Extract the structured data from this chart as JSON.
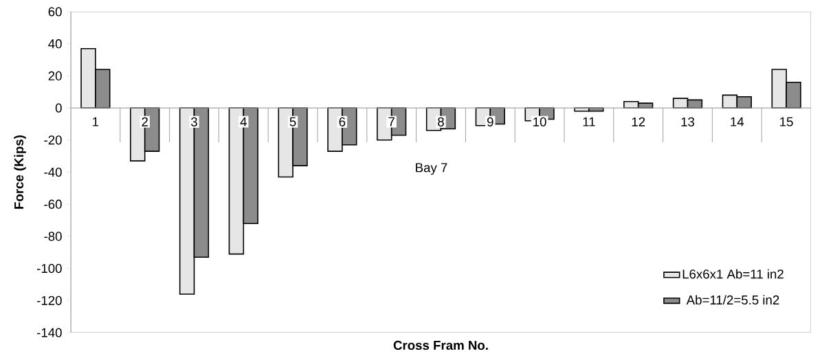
{
  "chart_data": {
    "type": "bar",
    "xlabel": "Cross Fram No.",
    "ylabel": "Force (Kips)",
    "categories": [
      "1",
      "2",
      "3",
      "4",
      "5",
      "6",
      "7",
      "8",
      "9",
      "10",
      "11",
      "12",
      "13",
      "14",
      "15"
    ],
    "series": [
      {
        "name": "L6x6x1 Ab=11 in2",
        "color": "#e6e6e6",
        "values": [
          37,
          -33,
          -116,
          -91,
          -43,
          -27,
          -20,
          -14,
          -11,
          -8,
          -2,
          4,
          6,
          8,
          24
        ]
      },
      {
        "name": "Ab=11/2=5.5 in2",
        "color": "#8c8c8c",
        "values": [
          24,
          -27,
          -93,
          -72,
          -36,
          -23,
          -17,
          -13,
          -10,
          -7,
          -2,
          3,
          5,
          7,
          16
        ]
      }
    ],
    "ylim": [
      -140,
      60
    ],
    "yticks": [
      -140,
      -120,
      -100,
      -80,
      -60,
      -40,
      -20,
      0,
      20,
      40,
      60
    ],
    "legend": "bottom right",
    "grid": false,
    "annotations": [
      "Bay 7"
    ]
  }
}
